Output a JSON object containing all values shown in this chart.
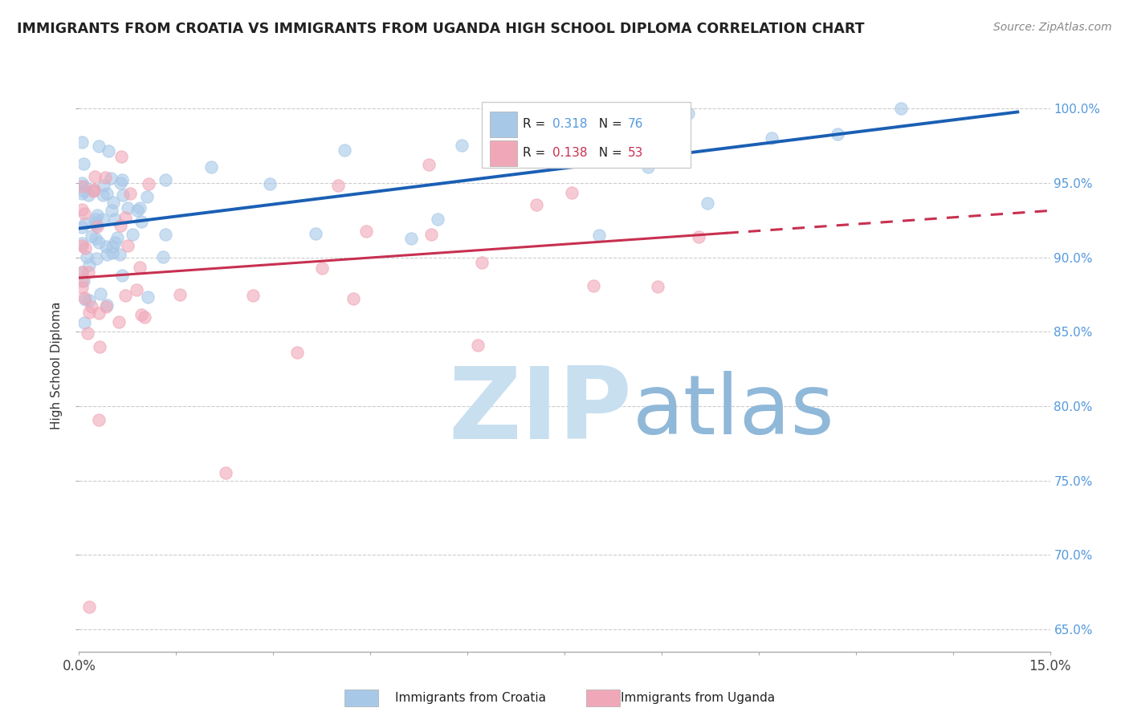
{
  "title": "IMMIGRANTS FROM CROATIA VS IMMIGRANTS FROM UGANDA HIGH SCHOOL DIPLOMA CORRELATION CHART",
  "source": "Source: ZipAtlas.com",
  "ylabel": "High School Diploma",
  "legend_label1": "Immigrants from Croatia",
  "legend_label2": "Immigrants from Uganda",
  "R1": 0.318,
  "N1": 76,
  "R2": 0.138,
  "N2": 53,
  "xlim": [
    0.0,
    0.15
  ],
  "ylim": [
    0.635,
    1.02
  ],
  "xticks": [
    0.0,
    0.015,
    0.03,
    0.045,
    0.06,
    0.075,
    0.09,
    0.105,
    0.12,
    0.135,
    0.15
  ],
  "xtick_labels": [
    "0.0%",
    "",
    "",
    "",
    "",
    "",
    "",
    "",
    "",
    "",
    "15.0%"
  ],
  "yticks": [
    0.65,
    0.7,
    0.75,
    0.8,
    0.85,
    0.9,
    0.95,
    1.0
  ],
  "ytick_labels": [
    "65.0%",
    "70.0%",
    "75.0%",
    "80.0%",
    "85.0%",
    "90.0%",
    "95.0%",
    "100.0%"
  ],
  "color_croatia": "#a8c8e8",
  "color_uganda": "#f0a8b8",
  "trend_color_croatia": "#1a5fb4",
  "trend_color_uganda": "#c83050",
  "background_color": "#ffffff",
  "watermark_zip": "ZIP",
  "watermark_atlas": "atlas",
  "watermark_color_zip": "#c8dff0",
  "watermark_color_atlas": "#90b8d8"
}
